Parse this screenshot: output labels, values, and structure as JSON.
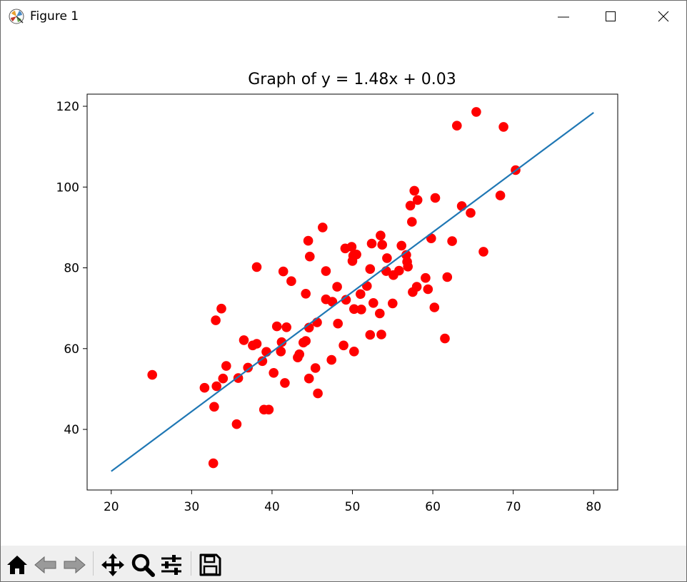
{
  "window": {
    "title": "Figure 1",
    "icons": [
      "matplotlib-icon",
      "minimize-icon",
      "maximize-icon",
      "close-icon"
    ]
  },
  "toolbar": {
    "buttons": [
      {
        "name": "home-button",
        "icon": "home-icon"
      },
      {
        "name": "back-button",
        "icon": "back-arrow-icon"
      },
      {
        "name": "forward-button",
        "icon": "forward-arrow-icon"
      },
      {
        "name": "pan-button",
        "icon": "move-icon"
      },
      {
        "name": "zoom-button",
        "icon": "zoom-icon"
      },
      {
        "name": "configure-subplots-button",
        "icon": "sliders-icon"
      },
      {
        "name": "save-button",
        "icon": "save-icon"
      }
    ]
  },
  "chart_data": {
    "type": "scatter",
    "title": "Graph of y = 1.48x + 0.03",
    "xlabel": "",
    "ylabel": "",
    "xlim": [
      17,
      83
    ],
    "ylim": [
      25,
      123
    ],
    "xticks": [
      20,
      30,
      40,
      50,
      60,
      70,
      80
    ],
    "yticks": [
      40,
      60,
      80,
      100,
      120
    ],
    "grid": false,
    "colors": {
      "points": "#ff0000",
      "line": "#1f77b4"
    },
    "series": [
      {
        "type": "scatter",
        "points": [
          [
            25.1,
            53.5
          ],
          [
            31.6,
            50.3
          ],
          [
            32.7,
            31.6
          ],
          [
            32.8,
            45.6
          ],
          [
            33.0,
            67.0
          ],
          [
            33.1,
            50.7
          ],
          [
            33.7,
            69.9
          ],
          [
            33.9,
            52.6
          ],
          [
            34.3,
            55.7
          ],
          [
            35.6,
            41.3
          ],
          [
            35.8,
            52.7
          ],
          [
            36.5,
            62.1
          ],
          [
            37.0,
            55.3
          ],
          [
            37.6,
            60.8
          ],
          [
            38.1,
            61.2
          ],
          [
            38.1,
            80.2
          ],
          [
            38.8,
            56.9
          ],
          [
            39.0,
            44.9
          ],
          [
            39.3,
            59.2
          ],
          [
            39.6,
            44.9
          ],
          [
            40.2,
            54.0
          ],
          [
            40.6,
            65.5
          ],
          [
            41.1,
            59.3
          ],
          [
            41.2,
            61.6
          ],
          [
            41.4,
            79.1
          ],
          [
            41.6,
            51.5
          ],
          [
            41.8,
            65.3
          ],
          [
            42.4,
            76.7
          ],
          [
            43.2,
            57.8
          ],
          [
            43.4,
            58.6
          ],
          [
            43.9,
            61.5
          ],
          [
            44.2,
            61.9
          ],
          [
            44.2,
            73.6
          ],
          [
            44.5,
            86.7
          ],
          [
            44.6,
            65.2
          ],
          [
            44.6,
            52.6
          ],
          [
            44.7,
            82.8
          ],
          [
            45.4,
            55.2
          ],
          [
            45.6,
            66.5
          ],
          [
            45.7,
            48.9
          ],
          [
            46.3,
            90.0
          ],
          [
            46.7,
            72.2
          ],
          [
            46.7,
            79.2
          ],
          [
            47.4,
            57.2
          ],
          [
            47.5,
            71.6
          ],
          [
            48.1,
            75.3
          ],
          [
            48.2,
            66.2
          ],
          [
            48.9,
            60.8
          ],
          [
            49.1,
            84.8
          ],
          [
            49.2,
            72.1
          ],
          [
            49.9,
            85.2
          ],
          [
            50.0,
            81.7
          ],
          [
            50.1,
            83.0
          ],
          [
            50.2,
            69.8
          ],
          [
            50.2,
            59.3
          ],
          [
            50.5,
            83.3
          ],
          [
            51.0,
            73.5
          ],
          [
            51.1,
            69.7
          ],
          [
            51.8,
            75.5
          ],
          [
            52.2,
            63.4
          ],
          [
            52.2,
            79.7
          ],
          [
            52.4,
            86.0
          ],
          [
            52.6,
            71.3
          ],
          [
            53.4,
            68.7
          ],
          [
            53.5,
            88.0
          ],
          [
            53.6,
            63.5
          ],
          [
            53.7,
            85.7
          ],
          [
            54.2,
            79.2
          ],
          [
            54.3,
            82.4
          ],
          [
            55.0,
            71.2
          ],
          [
            55.1,
            78.2
          ],
          [
            55.8,
            79.3
          ],
          [
            56.1,
            85.5
          ],
          [
            56.7,
            83.2
          ],
          [
            56.8,
            81.5
          ],
          [
            56.9,
            80.3
          ],
          [
            57.2,
            95.4
          ],
          [
            57.4,
            91.4
          ],
          [
            57.5,
            74.0
          ],
          [
            57.7,
            99.1
          ],
          [
            58.1,
            96.8
          ],
          [
            58.0,
            75.3
          ],
          [
            59.1,
            77.5
          ],
          [
            59.4,
            74.7
          ],
          [
            59.8,
            87.3
          ],
          [
            60.2,
            70.2
          ],
          [
            60.3,
            97.3
          ],
          [
            61.5,
            62.5
          ],
          [
            61.8,
            77.7
          ],
          [
            62.4,
            86.6
          ],
          [
            63.0,
            115.2
          ],
          [
            63.6,
            95.3
          ],
          [
            64.7,
            93.6
          ],
          [
            65.4,
            118.6
          ],
          [
            66.3,
            84.0
          ],
          [
            68.4,
            97.9
          ],
          [
            68.8,
            114.9
          ],
          [
            70.3,
            104.2
          ]
        ]
      },
      {
        "type": "line",
        "x": [
          20,
          80
        ],
        "y": [
          29.63,
          118.43
        ]
      }
    ]
  }
}
